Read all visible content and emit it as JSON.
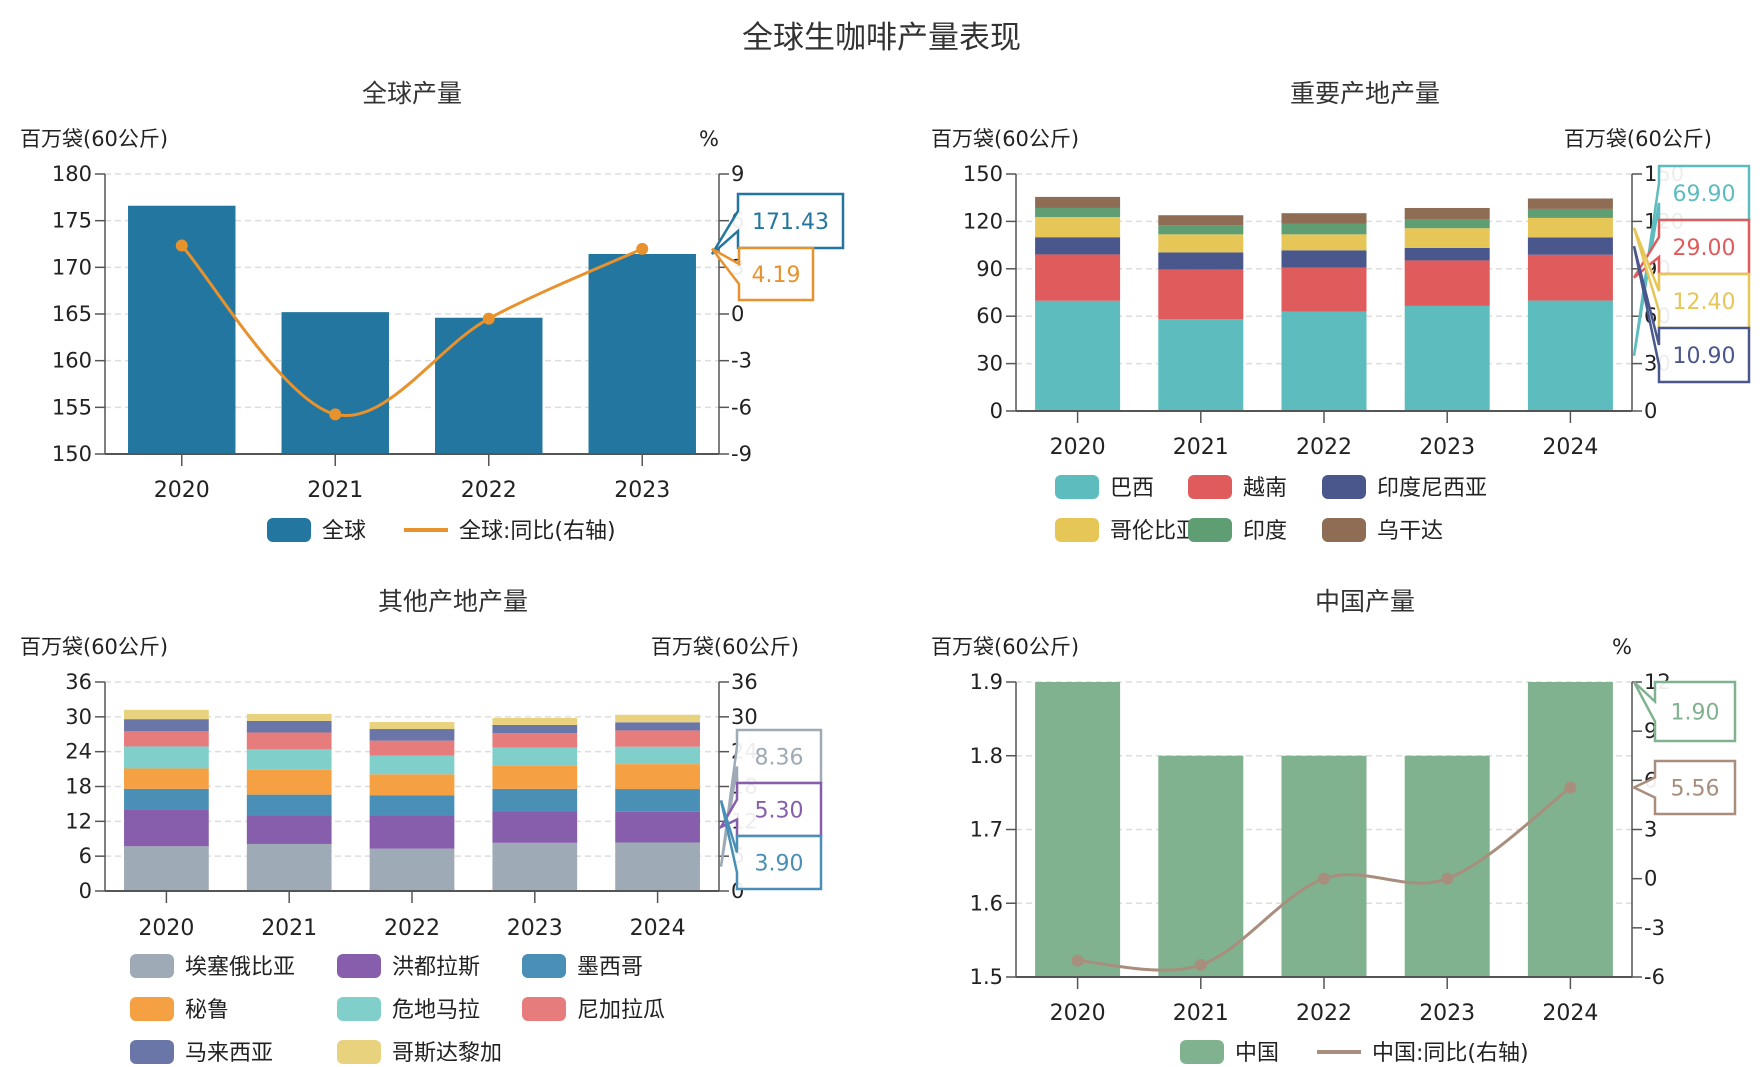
{
  "title": "全球生咖啡产量表现",
  "chart_data": [
    {
      "id": "global",
      "type": "bar+line",
      "title": "全球产量",
      "ylabel_left": "百万袋(60公斤)",
      "ylabel_right": "%",
      "categories": [
        "2020",
        "2021",
        "2022",
        "2023"
      ],
      "ylim_left": [
        150,
        180
      ],
      "yticks_left": [
        150,
        155,
        160,
        165,
        170,
        175,
        180
      ],
      "ylim_right": [
        -9,
        9
      ],
      "yticks_right": [
        -9,
        -6,
        -3,
        0,
        3,
        6,
        9
      ],
      "grid": true,
      "legend": "bottom",
      "series": [
        {
          "name": "全球",
          "kind": "bar",
          "axis": "left",
          "color": "#23769f",
          "values": [
            176.6,
            165.2,
            164.6,
            171.43
          ]
        },
        {
          "name": "全球:同比(右轴)",
          "kind": "line",
          "axis": "right",
          "color": "#e8922e",
          "values": [
            4.4,
            -6.45,
            -0.3,
            4.19
          ]
        }
      ],
      "callouts": [
        {
          "series": 0,
          "text": "171.43"
        },
        {
          "series": 1,
          "text": "4.19"
        }
      ]
    },
    {
      "id": "major",
      "type": "stacked-bar",
      "title": "重要产地产量",
      "ylabel_left": "百万袋(60公斤)",
      "ylabel_right": "百万袋(60公斤)",
      "categories": [
        "2020",
        "2021",
        "2022",
        "2023",
        "2024"
      ],
      "ylim_left": [
        0,
        150
      ],
      "yticks_left": [
        0,
        30,
        60,
        90,
        120,
        150
      ],
      "ylim_right": [
        0,
        150
      ],
      "yticks_right": [
        0,
        30,
        60,
        90,
        120,
        150
      ],
      "grid": true,
      "legend": "bottom",
      "series": [
        {
          "name": "巴西",
          "color": "#5cbcbe",
          "values": [
            69.8,
            58.2,
            63.0,
            66.5,
            69.9
          ]
        },
        {
          "name": "越南",
          "color": "#e05b5c",
          "values": [
            29.3,
            31.4,
            27.7,
            28.8,
            29.0
          ]
        },
        {
          "name": "印度尼西亚",
          "color": "#4a578c",
          "values": [
            10.9,
            10.8,
            11.0,
            7.9,
            10.9
          ]
        },
        {
          "name": "哥伦比亚",
          "color": "#e6c657",
          "values": [
            12.8,
            11.4,
            10.1,
            12.5,
            12.4
          ]
        },
        {
          "name": "印度",
          "color": "#5f9d73",
          "values": [
            5.7,
            5.7,
            6.6,
            5.8,
            5.7
          ]
        },
        {
          "name": "乌干达",
          "color": "#8f6d54",
          "values": [
            7.0,
            6.4,
            6.8,
            7.0,
            6.6
          ]
        }
      ],
      "callouts": [
        {
          "series": 0,
          "text": "69.90"
        },
        {
          "series": 1,
          "text": "29.00"
        },
        {
          "series": 3,
          "text": "12.40"
        },
        {
          "series": 2,
          "text": "10.90"
        }
      ]
    },
    {
      "id": "others",
      "type": "stacked-bar",
      "title": "其他产地产量",
      "ylabel_left": "百万袋(60公斤)",
      "ylabel_right": "百万袋(60公斤)",
      "categories": [
        "2020",
        "2021",
        "2022",
        "2023",
        "2024"
      ],
      "ylim_left": [
        0,
        36
      ],
      "yticks_left": [
        0,
        6,
        12,
        18,
        24,
        30,
        36
      ],
      "ylim_right": [
        0,
        36
      ],
      "yticks_right": [
        0,
        6,
        12,
        18,
        24,
        30,
        36
      ],
      "grid": true,
      "legend": "bottom",
      "series": [
        {
          "name": "埃塞俄比亚",
          "color": "#9eaab5",
          "values": [
            7.7,
            8.1,
            7.3,
            8.3,
            8.36
          ]
        },
        {
          "name": "洪都拉斯",
          "color": "#875eab",
          "values": [
            6.4,
            4.9,
            5.7,
            5.4,
            5.3
          ]
        },
        {
          "name": "墨西哥",
          "color": "#4a8fb6",
          "values": [
            3.5,
            3.6,
            3.5,
            3.9,
            3.9
          ]
        },
        {
          "name": "秘鲁",
          "color": "#f5a043",
          "values": [
            3.5,
            4.3,
            3.6,
            4.0,
            4.3
          ]
        },
        {
          "name": "危地马拉",
          "color": "#80cfca",
          "values": [
            3.8,
            3.5,
            3.2,
            3.1,
            3.0
          ]
        },
        {
          "name": "尼加拉瓜",
          "color": "#e67c7b",
          "values": [
            2.6,
            2.9,
            2.6,
            2.5,
            2.8
          ]
        },
        {
          "name": "马来西亚",
          "color": "#6b76a8",
          "values": [
            2.1,
            2.0,
            2.0,
            1.4,
            1.4
          ]
        },
        {
          "name": "哥斯达黎加",
          "color": "#e9d27d",
          "values": [
            1.6,
            1.2,
            1.2,
            1.2,
            1.3
          ]
        }
      ],
      "callouts": [
        {
          "series": 0,
          "text": "8.36"
        },
        {
          "series": 1,
          "text": "5.30"
        },
        {
          "series": 2,
          "text": "3.90"
        }
      ]
    },
    {
      "id": "china",
      "type": "bar+line",
      "title": "中国产量",
      "ylabel_left": "百万袋(60公斤)",
      "ylabel_right": "%",
      "categories": [
        "2020",
        "2021",
        "2022",
        "2023",
        "2024"
      ],
      "ylim_left": [
        1.5,
        1.9
      ],
      "yticks_left": [
        "1.5",
        "1.6",
        "1.7",
        "1.8",
        "1.9"
      ],
      "ylim_right": [
        -6,
        12
      ],
      "yticks_right": [
        -6,
        -3,
        0,
        3,
        6,
        9,
        12
      ],
      "grid": true,
      "legend": "bottom",
      "series": [
        {
          "name": "中国",
          "kind": "bar",
          "axis": "left",
          "color": "#80b28f",
          "values": [
            1.9,
            1.8,
            1.8,
            1.8,
            1.9
          ]
        },
        {
          "name": "中国:同比(右轴)",
          "kind": "line",
          "axis": "right",
          "color": "#a88e7c",
          "values": [
            -5.0,
            -5.26,
            0,
            0,
            5.56
          ]
        }
      ],
      "callouts": [
        {
          "series": 0,
          "text": "1.90"
        },
        {
          "series": 1,
          "text": "5.56"
        }
      ]
    }
  ]
}
